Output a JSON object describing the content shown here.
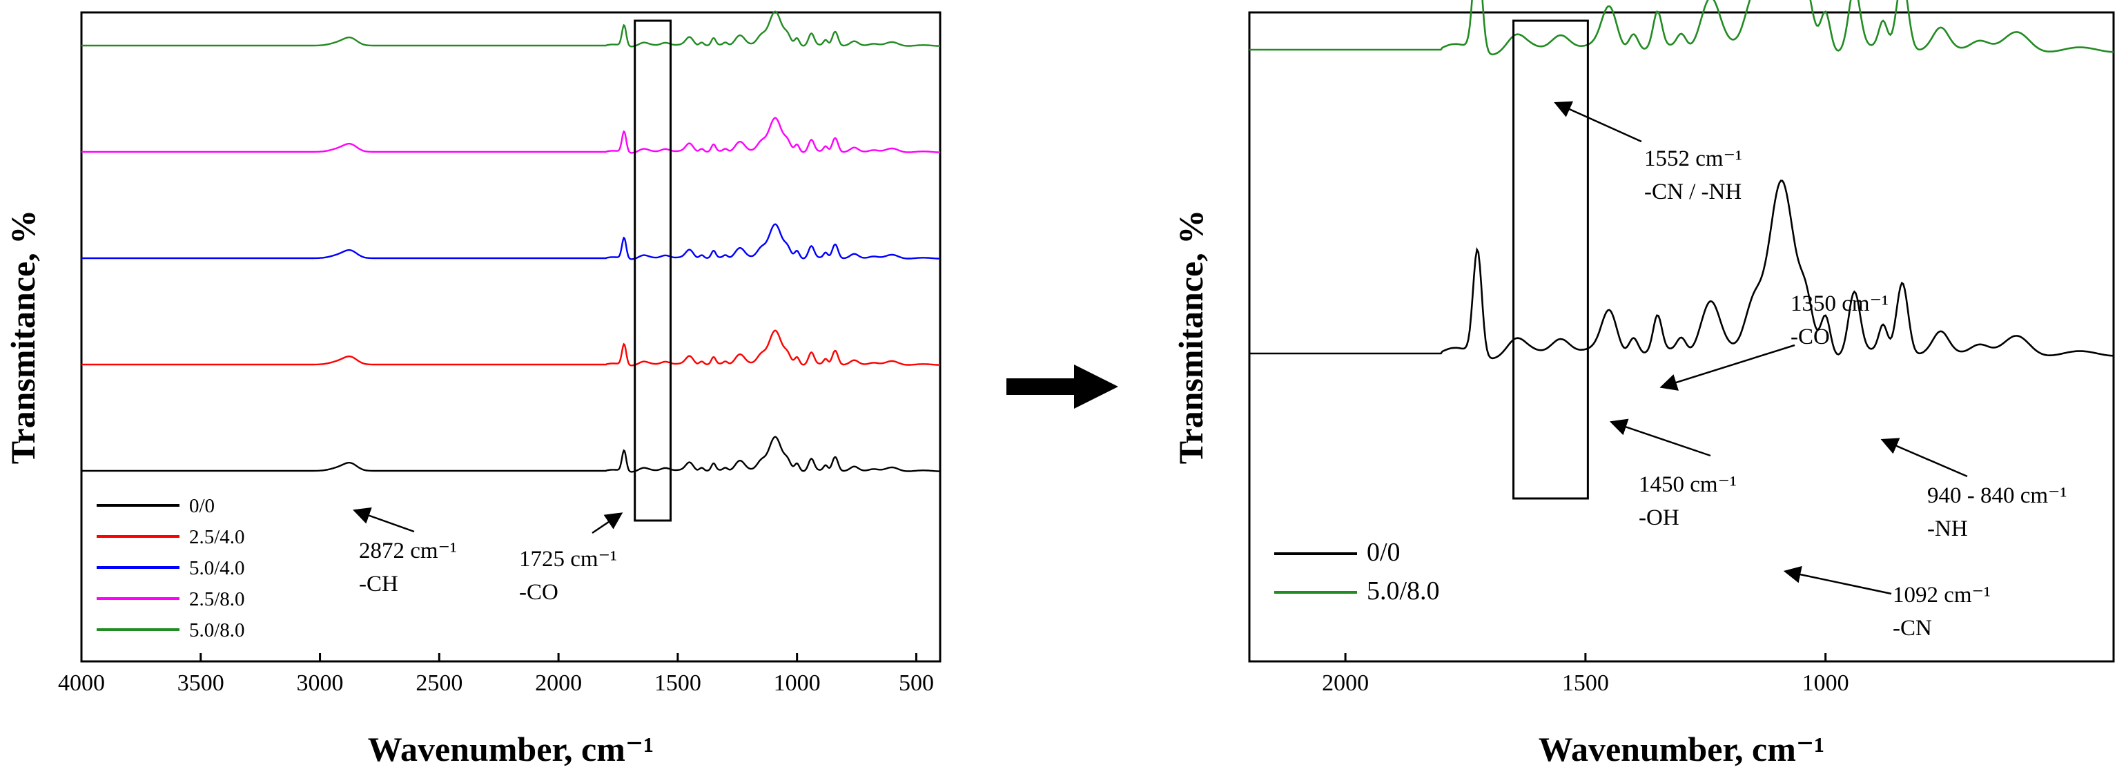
{
  "colors": {
    "0/0": "#000000",
    "2.5/4.0": "#ff0000",
    "5.0/4.0": "#0000ff",
    "2.5/8.0": "#ff00ff",
    "5.0/8.0": "#228b22"
  },
  "arrow_icon": "right-arrow-icon",
  "chart_data": [
    {
      "type": "line",
      "xlabel": "Wavenumber, cm⁻¹",
      "ylabel": "Transmitance, %",
      "xlim": [
        4000,
        400
      ],
      "x_reversed": true,
      "xticks": [
        "4000",
        "3500",
        "3000",
        "2500",
        "2000",
        "1500",
        "1000",
        "500"
      ],
      "legend": {
        "placement": "bottom-left",
        "entries": [
          "0/0",
          "2.5/4.0",
          "5.0/4.0",
          "2.5/8.0",
          "5.0/8.0"
        ]
      },
      "series": [
        {
          "name": "0/0",
          "offset": 0
        },
        {
          "name": "2.5/4.0",
          "offset": 1
        },
        {
          "name": "5.0/4.0",
          "offset": 2
        },
        {
          "name": "2.5/8.0",
          "offset": 3
        },
        {
          "name": "5.0/8.0",
          "offset": 4
        }
      ],
      "highlight_region": [
        1680,
        1530
      ],
      "annotations": [
        {
          "x": 2872,
          "line1": "2872 cm⁻¹",
          "line2": "-CH"
        },
        {
          "x": 1725,
          "line1": "1725 cm⁻¹",
          "line2": "-CO"
        }
      ]
    },
    {
      "type": "line",
      "xlabel": "Wavenumber, cm⁻¹",
      "ylabel": "Transmitance, %",
      "xlim": [
        2200,
        400
      ],
      "x_reversed": true,
      "xticks": [
        "2000",
        "1500",
        "1000"
      ],
      "legend": {
        "placement": "bottom-left",
        "entries": [
          "0/0",
          "5.0/8.0"
        ]
      },
      "series": [
        {
          "name": "0/0",
          "offset": 0
        },
        {
          "name": "5.0/8.0",
          "offset": 1
        }
      ],
      "highlight_region": [
        1650,
        1495
      ],
      "annotations": [
        {
          "x": 1552,
          "line1": "1552 cm⁻¹",
          "line2": "-CN / -NH"
        },
        {
          "x": 1350,
          "line1": "1350 cm⁻¹",
          "line2": "-CO"
        },
        {
          "x": 1450,
          "line1": "1450 cm⁻¹",
          "line2": "-OH"
        },
        {
          "x": 1092,
          "line1": "1092 cm⁻¹",
          "line2": "-CN"
        },
        {
          "x": 890,
          "line1": "940 - 840 cm⁻¹",
          "line2": "-NH"
        }
      ]
    }
  ]
}
